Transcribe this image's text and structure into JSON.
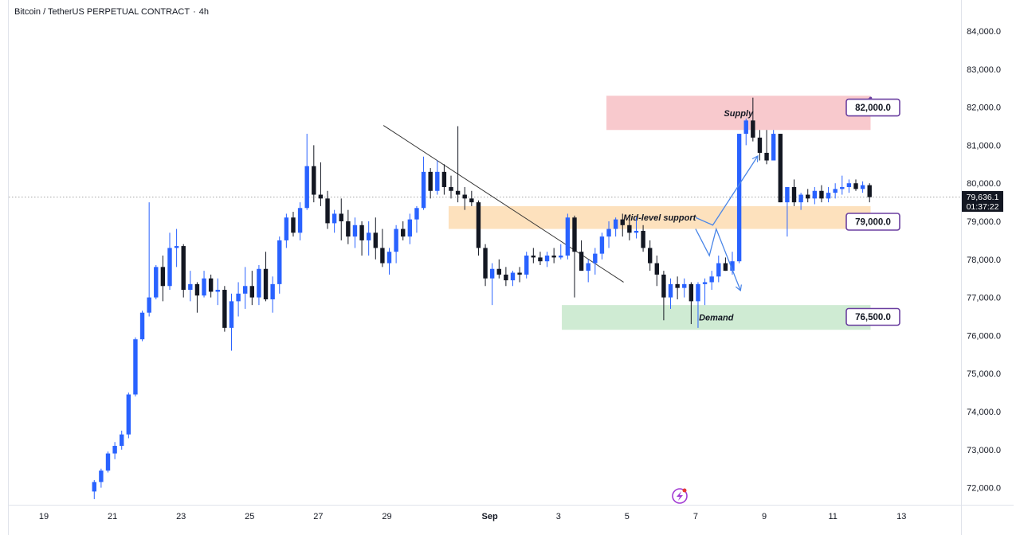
{
  "header": {
    "symbol_name": "Bitcoin / TetherUS PERPETUAL CONTRACT",
    "separator": "·",
    "timeframe": "4h"
  },
  "price_scale": {
    "last_price": "79,636.1",
    "countdown": "01:37:22"
  },
  "colors": {
    "up_candle": "#2962ff",
    "down_candle": "#131722",
    "supply_zone": "#f8c9cd",
    "support_zone": "#fde1bd",
    "demand_zone": "#cfebd3",
    "callout_border": "#6a3fa0",
    "projection_arrow": "#4a86e8",
    "logo": "#a23cd4"
  },
  "icons": {
    "logo": "lightning-bolt-logo-icon"
  },
  "chart_data": {
    "type": "candlestick",
    "title": "Bitcoin / TetherUS PERPETUAL CONTRACT · 4h",
    "ylim": [
      71600,
      84600
    ],
    "y_ticks": [
      72000,
      73000,
      74000,
      75000,
      76000,
      77000,
      78000,
      79000,
      80000,
      81000,
      82000,
      83000,
      84000
    ],
    "y_tick_labels": [
      "72,000.0",
      "73,000.0",
      "74,000.0",
      "75,000.0",
      "76,000.0",
      "77,000.0",
      "78,000.0",
      "79,000.0",
      "80,000.0",
      "81,000.0",
      "82,000.0",
      "83,000.0",
      "84,000.0"
    ],
    "x_axis": {
      "unit": "calendar day (Aug 19 → Sep 13)",
      "ticks": [
        {
          "label": "19",
          "day": 0
        },
        {
          "label": "21",
          "day": 2
        },
        {
          "label": "23",
          "day": 4
        },
        {
          "label": "25",
          "day": 6
        },
        {
          "label": "27",
          "day": 8
        },
        {
          "label": "29",
          "day": 10
        },
        {
          "label": "Sep",
          "day": 13
        },
        {
          "label": "3",
          "day": 15
        },
        {
          "label": "5",
          "day": 17
        },
        {
          "label": "7",
          "day": 19
        },
        {
          "label": "9",
          "day": 21
        },
        {
          "label": "11",
          "day": 23
        },
        {
          "label": "13",
          "day": 25
        }
      ]
    },
    "grid": false,
    "candles": [
      [
        71900,
        72200,
        71700,
        72150
      ],
      [
        72150,
        72500,
        72000,
        72450
      ],
      [
        72450,
        72950,
        72400,
        72900
      ],
      [
        72900,
        73200,
        72750,
        73100
      ],
      [
        73100,
        73500,
        73000,
        73400
      ],
      [
        73400,
        74500,
        73300,
        74450
      ],
      [
        74450,
        75950,
        74400,
        75900
      ],
      [
        75900,
        76650,
        75850,
        76600
      ],
      [
        76600,
        79500,
        76500,
        77000
      ],
      [
        77000,
        77850,
        76950,
        77800
      ],
      [
        77800,
        78100,
        76900,
        77300
      ],
      [
        77300,
        78700,
        77200,
        78300
      ],
      [
        78300,
        78800,
        77800,
        78350
      ],
      [
        78350,
        78400,
        77000,
        77200
      ],
      [
        77200,
        77700,
        76900,
        77350
      ],
      [
        77350,
        77400,
        76600,
        77050
      ],
      [
        77050,
        77700,
        77000,
        77500
      ],
      [
        77500,
        77600,
        77000,
        77150
      ],
      [
        77150,
        77500,
        76800,
        77200
      ],
      [
        77200,
        77300,
        76100,
        76200
      ],
      [
        76200,
        77100,
        75600,
        76900
      ],
      [
        76900,
        77400,
        76500,
        77100
      ],
      [
        77100,
        77800,
        76700,
        77300
      ],
      [
        77300,
        77700,
        76800,
        77000
      ],
      [
        77000,
        77850,
        76800,
        77750
      ],
      [
        77750,
        78200,
        76900,
        76950
      ],
      [
        76950,
        77550,
        76600,
        77350
      ],
      [
        77350,
        78600,
        77100,
        78500
      ],
      [
        78500,
        79200,
        78300,
        79100
      ],
      [
        79100,
        79250,
        78600,
        78700
      ],
      [
        78700,
        79500,
        78500,
        79350
      ],
      [
        79350,
        81300,
        79300,
        80450
      ],
      [
        80450,
        81000,
        79500,
        79700
      ],
      [
        79700,
        80550,
        79400,
        79600
      ],
      [
        79600,
        79800,
        78800,
        78950
      ],
      [
        78950,
        79300,
        78700,
        79200
      ],
      [
        79200,
        79600,
        78500,
        79000
      ],
      [
        79000,
        79300,
        78400,
        78600
      ],
      [
        78600,
        79100,
        78300,
        78900
      ],
      [
        78900,
        79000,
        78100,
        78500
      ],
      [
        78500,
        79000,
        78100,
        78700
      ],
      [
        78700,
        79100,
        78000,
        78300
      ],
      [
        78300,
        78800,
        77800,
        77900
      ],
      [
        77900,
        78300,
        77600,
        78200
      ],
      [
        78200,
        78900,
        77900,
        78800
      ],
      [
        78800,
        79000,
        78500,
        78600
      ],
      [
        78600,
        79200,
        78400,
        79050
      ],
      [
        79050,
        79400,
        78700,
        79350
      ],
      [
        79350,
        80700,
        79300,
        80300
      ],
      [
        80300,
        80400,
        79600,
        79800
      ],
      [
        79800,
        80600,
        79700,
        80300
      ],
      [
        80300,
        80500,
        79700,
        79900
      ],
      [
        79900,
        80200,
        79600,
        79800
      ],
      [
        79800,
        81500,
        79500,
        79700
      ],
      [
        79700,
        79900,
        79300,
        79600
      ],
      [
        79600,
        79800,
        79400,
        79500
      ],
      [
        79500,
        79550,
        78100,
        78300
      ],
      [
        78300,
        78400,
        77300,
        77500
      ],
      [
        77500,
        77900,
        76800,
        77750
      ],
      [
        77750,
        78000,
        77500,
        77600
      ],
      [
        77600,
        77800,
        77300,
        77450
      ],
      [
        77450,
        77700,
        77300,
        77650
      ],
      [
        77650,
        77800,
        77400,
        77600
      ],
      [
        77600,
        78200,
        77500,
        78100
      ],
      [
        78100,
        78300,
        77900,
        78050
      ],
      [
        78050,
        78200,
        77850,
        77950
      ],
      [
        77950,
        78200,
        77800,
        78100
      ],
      [
        78100,
        78300,
        77900,
        78050
      ],
      [
        78050,
        78400,
        78000,
        78100
      ],
      [
        78100,
        79200,
        78000,
        79100
      ],
      [
        79100,
        79150,
        77000,
        78200
      ],
      [
        78200,
        78500,
        77800,
        77700
      ],
      [
        77700,
        78000,
        77400,
        77900
      ],
      [
        77900,
        78300,
        77600,
        78150
      ],
      [
        78150,
        78700,
        78000,
        78600
      ],
      [
        78600,
        79000,
        78300,
        78800
      ],
      [
        78800,
        79100,
        78600,
        79050
      ],
      [
        79050,
        79200,
        78600,
        78900
      ],
      [
        78900,
        79050,
        78500,
        78700
      ],
      [
        78700,
        79100,
        78550,
        78750
      ],
      [
        78750,
        78900,
        78200,
        78300
      ],
      [
        78300,
        78500,
        77700,
        77900
      ],
      [
        77900,
        78100,
        77300,
        77600
      ],
      [
        77600,
        77700,
        76400,
        77000
      ],
      [
        77000,
        77500,
        76700,
        77350
      ],
      [
        77350,
        77550,
        76950,
        77250
      ],
      [
        77250,
        77500,
        77000,
        77350
      ],
      [
        77350,
        77400,
        76300,
        76900
      ],
      [
        76900,
        77400,
        76200,
        77350
      ],
      [
        77350,
        77500,
        76800,
        77400
      ],
      [
        77400,
        77700,
        77200,
        77550
      ],
      [
        77550,
        78100,
        77400,
        77900
      ],
      [
        77900,
        78050,
        77700,
        77700
      ],
      [
        77700,
        78200,
        77600,
        77950
      ],
      [
        77950,
        81300,
        77900,
        81300
      ],
      [
        81300,
        81700,
        81000,
        81650
      ],
      [
        81650,
        82250,
        81100,
        81200
      ],
      [
        81200,
        81400,
        80600,
        80800
      ],
      [
        80800,
        81400,
        80500,
        80600
      ],
      [
        80600,
        81400,
        80600,
        81300
      ],
      [
        81300,
        81300,
        79500,
        79500
      ],
      [
        79500,
        79800,
        78600,
        79900
      ],
      [
        79900,
        80100,
        79400,
        79500
      ],
      [
        79500,
        79750,
        79300,
        79700
      ],
      [
        79700,
        79850,
        79500,
        79600
      ],
      [
        79600,
        79900,
        79450,
        79800
      ],
      [
        79800,
        79950,
        79500,
        79600
      ],
      [
        79600,
        79900,
        79500,
        79750
      ],
      [
        79750,
        80000,
        79600,
        79850
      ],
      [
        79850,
        80200,
        79700,
        79900
      ],
      [
        79900,
        80100,
        79750,
        80000
      ],
      [
        80000,
        80100,
        79800,
        79850
      ],
      [
        79850,
        80050,
        79750,
        79950
      ],
      [
        79950,
        80000,
        79500,
        79636
      ]
    ],
    "x_start_day": 1.47,
    "x_step_day": 0.2,
    "zones": [
      {
        "name": "Supply",
        "label": "Supply",
        "price_low": 81400,
        "price_high": 82300,
        "day_start": 16.4,
        "day_end": 24.1
      },
      {
        "name": "Mid-level support",
        "label": "Mid-level support",
        "price_low": 78800,
        "price_high": 79400,
        "day_start": 11.8,
        "day_end": 24.1
      },
      {
        "name": "Demand",
        "label": "Demand",
        "price_low": 76150,
        "price_high": 76800,
        "day_start": 15.1,
        "day_end": 24.1
      }
    ],
    "callouts": [
      {
        "label": "82,000.0",
        "price": 82000
      },
      {
        "label": "79,000.0",
        "price": 79000
      },
      {
        "label": "76,500.0",
        "price": 76500
      }
    ],
    "trendline": {
      "from": {
        "day": 9.9,
        "price": 81520
      },
      "to": {
        "day": 16.9,
        "price": 77400
      }
    },
    "projections": [
      {
        "points": [
          [
            19.0,
            79100
          ],
          [
            19.5,
            78900
          ],
          [
            20.8,
            80700
          ]
        ]
      },
      {
        "points": [
          [
            19.0,
            78800
          ],
          [
            19.4,
            78100
          ],
          [
            19.6,
            78800
          ],
          [
            20.3,
            77200
          ]
        ]
      }
    ],
    "last_price": 79636.1
  }
}
